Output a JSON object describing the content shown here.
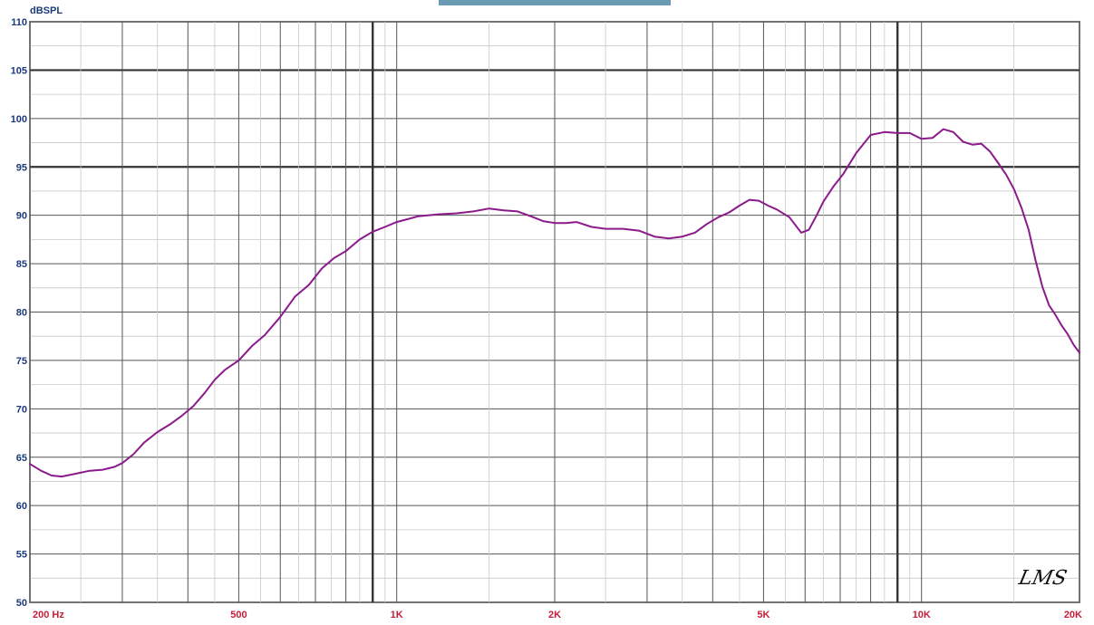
{
  "header_tab_color": "#6a9bb5",
  "logo_text": "LMS",
  "chart_data": {
    "type": "line",
    "title": "",
    "ylabel": "dBSPL",
    "xlabel": "",
    "x_scale": "log",
    "xlim": [
      200,
      20000
    ],
    "ylim": [
      50,
      110
    ],
    "grid": true,
    "y_ticks": [
      50,
      55,
      60,
      65,
      70,
      75,
      80,
      85,
      90,
      95,
      100,
      105,
      110
    ],
    "y_tick_labels": [
      "50",
      "55",
      "60",
      "65",
      "70",
      "75",
      "80",
      "85",
      "90",
      "95",
      "100",
      "105",
      "110"
    ],
    "x_tick_labels": [
      {
        "x": 200,
        "label": "200 Hz"
      },
      {
        "x": 500,
        "label": "500"
      },
      {
        "x": 1000,
        "label": "1K"
      },
      {
        "x": 2000,
        "label": "2K"
      },
      {
        "x": 5000,
        "label": "5K"
      },
      {
        "x": 10000,
        "label": "10K"
      },
      {
        "x": 20000,
        "label": "20K"
      }
    ],
    "colors": {
      "curve": "#8b1a8b",
      "grid_minor": "#c8c8c8",
      "grid_major": "#555555",
      "grid_heavy": "#333333",
      "tick_text": "#c41e3a",
      "ytick_text": "#1a3a7a"
    },
    "series": [
      {
        "x": [
          200,
          210,
          220,
          230,
          245,
          260,
          275,
          290,
          300,
          315,
          330,
          350,
          370,
          390,
          410,
          430,
          450,
          470,
          500,
          530,
          560,
          600,
          640,
          680,
          720,
          760,
          800,
          850,
          900,
          950,
          1000,
          1050,
          1100,
          1200,
          1300,
          1400,
          1500,
          1600,
          1700,
          1800,
          1900,
          2000,
          2100,
          2200,
          2350,
          2500,
          2700,
          2900,
          3100,
          3300,
          3500,
          3700,
          3900,
          4100,
          4300,
          4500,
          4700,
          4900,
          5100,
          5300,
          5600,
          5900,
          6100,
          6300,
          6500,
          6800,
          7100,
          7500,
          8000,
          8500,
          9000,
          9500,
          10000,
          10500,
          11000,
          11500,
          12000,
          12500,
          13000,
          13500,
          14000,
          14500,
          15000,
          15500,
          16000,
          16500,
          17000,
          17500,
          18000,
          18500,
          19000,
          19500,
          20000
        ],
        "values": [
          64.3,
          63.6,
          63.1,
          63.0,
          63.3,
          63.6,
          63.7,
          64.0,
          64.4,
          65.3,
          66.5,
          67.6,
          68.4,
          69.3,
          70.3,
          71.6,
          73.0,
          74.0,
          75.0,
          76.5,
          77.6,
          79.5,
          81.6,
          82.8,
          84.5,
          85.6,
          86.3,
          87.5,
          88.3,
          88.8,
          89.3,
          89.6,
          89.9,
          90.1,
          90.2,
          90.4,
          90.7,
          90.5,
          90.4,
          89.9,
          89.4,
          89.2,
          89.2,
          89.3,
          88.8,
          88.6,
          88.6,
          88.4,
          87.8,
          87.6,
          87.8,
          88.2,
          89.1,
          89.8,
          90.3,
          91.0,
          91.6,
          91.5,
          91.0,
          90.6,
          89.8,
          88.2,
          88.5,
          89.9,
          91.4,
          93.0,
          94.3,
          96.4,
          98.3,
          98.6,
          98.5,
          98.5,
          97.9,
          98.0,
          98.9,
          98.6,
          97.6,
          97.3,
          97.4,
          96.6,
          95.4,
          94.2,
          92.7,
          90.8,
          88.5,
          85.3,
          82.6,
          80.7,
          79.7,
          78.6,
          77.7,
          76.6,
          75.8
        ]
      }
    ]
  }
}
